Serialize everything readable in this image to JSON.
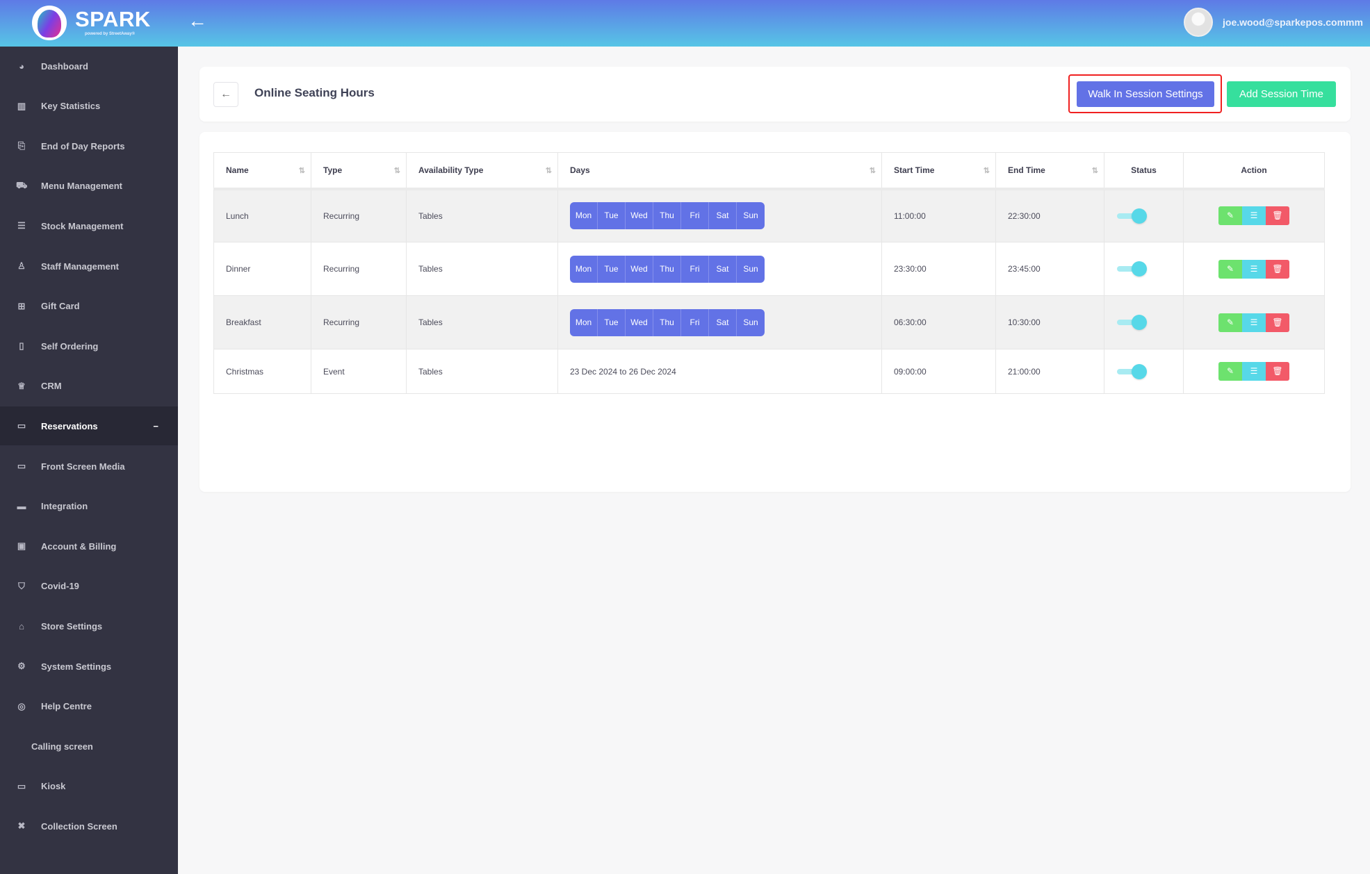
{
  "header": {
    "brand": "SPARK",
    "brand_sub": "powered by StreetAway®",
    "user_email": "joe.wood@sparkepos.commm"
  },
  "sidebar": {
    "items": [
      {
        "label": "Dashboard",
        "icon": "dashboard-icon",
        "glyph": "◕"
      },
      {
        "label": "Key Statistics",
        "icon": "bar-chart-icon",
        "glyph": "▥"
      },
      {
        "label": "End of Day Reports",
        "icon": "documents-icon",
        "glyph": "⎘"
      },
      {
        "label": "Menu Management",
        "icon": "cart-icon",
        "glyph": "⛟"
      },
      {
        "label": "Stock Management",
        "icon": "database-icon",
        "glyph": "☰"
      },
      {
        "label": "Staff Management",
        "icon": "user-icon",
        "glyph": "♙"
      },
      {
        "label": "Gift Card",
        "icon": "gift-icon",
        "glyph": "⊞"
      },
      {
        "label": "Self Ordering",
        "icon": "mobile-icon",
        "glyph": "▯"
      },
      {
        "label": "CRM",
        "icon": "crown-icon",
        "glyph": "♕"
      },
      {
        "label": "Reservations",
        "icon": "calendar-icon",
        "glyph": "▭",
        "active": true
      },
      {
        "label": "Front Screen Media",
        "icon": "laptop-icon",
        "glyph": "▭"
      },
      {
        "label": "Integration",
        "icon": "credit-card-icon",
        "glyph": "▬"
      },
      {
        "label": "Account & Billing",
        "icon": "wallet-icon",
        "glyph": "▣"
      },
      {
        "label": "Covid-19",
        "icon": "shield-icon",
        "glyph": "⛉"
      },
      {
        "label": "Store Settings",
        "icon": "home-icon",
        "glyph": "⌂"
      },
      {
        "label": "System Settings",
        "icon": "gear-icon",
        "glyph": "⚙"
      },
      {
        "label": "Help Centre",
        "icon": "lifebuoy-icon",
        "glyph": "◎"
      },
      {
        "label": "Calling screen",
        "icon": "",
        "glyph": ""
      },
      {
        "label": "Kiosk",
        "icon": "monitor-icon",
        "glyph": "▭"
      },
      {
        "label": "Collection Screen",
        "icon": "expand-icon",
        "glyph": "✖"
      }
    ]
  },
  "page": {
    "title": "Online Seating Hours",
    "walk_in_label": "Walk In Session Settings",
    "add_label": "Add Session Time"
  },
  "table": {
    "columns": [
      "Name",
      "Type",
      "Availability Type",
      "Days",
      "Start Time",
      "End Time",
      "Status",
      "Action"
    ],
    "rows": [
      {
        "name": "Lunch",
        "type": "Recurring",
        "availability": "Tables",
        "days": [
          "Mon",
          "Tue",
          "Wed",
          "Thu",
          "Fri",
          "Sat",
          "Sun"
        ],
        "start": "11:00:00",
        "end": "22:30:00",
        "status_on": true
      },
      {
        "name": "Dinner",
        "type": "Recurring",
        "availability": "Tables",
        "days": [
          "Mon",
          "Tue",
          "Wed",
          "Thu",
          "Fri",
          "Sat",
          "Sun"
        ],
        "start": "23:30:00",
        "end": "23:45:00",
        "status_on": true
      },
      {
        "name": "Breakfast",
        "type": "Recurring",
        "availability": "Tables",
        "days": [
          "Mon",
          "Tue",
          "Wed",
          "Thu",
          "Fri",
          "Sat",
          "Sun"
        ],
        "start": "06:30:00",
        "end": "10:30:00",
        "status_on": true
      },
      {
        "name": "Christmas",
        "type": "Event",
        "availability": "Tables",
        "days_text": "23 Dec 2024 to 26 Dec 2024",
        "start": "09:00:00",
        "end": "21:00:00",
        "status_on": true
      }
    ]
  },
  "colors": {
    "primary": "#6272e6",
    "success": "#36df9d",
    "info": "#57d8e8",
    "danger": "#f25a68",
    "sidebar": "#333342"
  }
}
